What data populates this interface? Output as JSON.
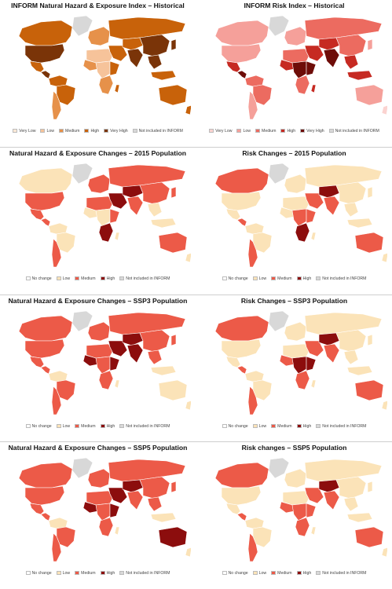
{
  "panels": [
    {
      "id": "p0",
      "title": "INFORM Natural Hazard & Exposure Index – Historical",
      "legend": [
        {
          "label": "Very Low",
          "color": "#fde9d6"
        },
        {
          "label": "Low",
          "color": "#f6c39a"
        },
        {
          "label": "Medium",
          "color": "#e6914a"
        },
        {
          "label": "High",
          "color": "#c8620a"
        },
        {
          "label": "Very High",
          "color": "#7a3408"
        },
        {
          "label": "Not included in INFORM",
          "color": "#d8d8d8"
        }
      ],
      "regions": {
        "greenland": "#d8d8d8",
        "canada": "#c8620a",
        "usa": "#7a3408",
        "mexico": "#c8620a",
        "central_america": "#7a3408",
        "south_america_north": "#c8620a",
        "brazil": "#c8620a",
        "south_america_south": "#e6914a",
        "europe": "#e6914a",
        "north_africa": "#f6c39a",
        "west_africa": "#e6914a",
        "central_africa": "#f6c39a",
        "east_africa": "#c8620a",
        "southern_africa": "#e6914a",
        "madagascar": "#c8620a",
        "middle_east": "#c8620a",
        "russia": "#c8620a",
        "central_asia": "#c8620a",
        "south_asia": "#7a3408",
        "china": "#7a3408",
        "southeast_asia": "#7a3408",
        "japan": "#7a3408",
        "indonesia": "#c8620a",
        "australia": "#c8620a",
        "new_zealand": "#c8620a",
        "antarctica": "#ffffff"
      }
    },
    {
      "id": "p1",
      "title": "INFORM Risk Index – Historical",
      "legend": [
        {
          "label": "Very Low",
          "color": "#fbd3d0"
        },
        {
          "label": "Low",
          "color": "#f5a09a"
        },
        {
          "label": "Medium",
          "color": "#ec6b60"
        },
        {
          "label": "High",
          "color": "#c62a22"
        },
        {
          "label": "Very High",
          "color": "#6e0c08"
        },
        {
          "label": "Not included in INFORM",
          "color": "#d8d8d8"
        }
      ],
      "regions": {
        "greenland": "#d8d8d8",
        "canada": "#f5a09a",
        "usa": "#f5a09a",
        "mexico": "#c62a22",
        "central_america": "#6e0c08",
        "south_america_north": "#ec6b60",
        "brazil": "#ec6b60",
        "south_america_south": "#f5a09a",
        "europe": "#f5a09a",
        "north_africa": "#ec6b60",
        "west_africa": "#c62a22",
        "central_africa": "#6e0c08",
        "east_africa": "#6e0c08",
        "southern_africa": "#ec6b60",
        "madagascar": "#c62a22",
        "middle_east": "#c62a22",
        "russia": "#ec6b60",
        "central_asia": "#c62a22",
        "south_asia": "#6e0c08",
        "china": "#ec6b60",
        "southeast_asia": "#c62a22",
        "japan": "#f5a09a",
        "indonesia": "#c62a22",
        "australia": "#f5a09a",
        "new_zealand": "#fbd3d0",
        "antarctica": "#ffffff"
      }
    },
    {
      "id": "p2",
      "title": "Natural Hazard & Exposure Changes – 2015 Population",
      "legend": [
        {
          "label": "No change",
          "color": "#ffffff"
        },
        {
          "label": "Low",
          "color": "#fbe3b8"
        },
        {
          "label": "Medium",
          "color": "#ec5a48"
        },
        {
          "label": "High",
          "color": "#8c0d0d"
        },
        {
          "label": "Not included in INFORM",
          "color": "#d8d8d8"
        }
      ],
      "regions": {
        "greenland": "#d8d8d8",
        "canada": "#fbe3b8",
        "usa": "#ec5a48",
        "mexico": "#ec5a48",
        "central_america": "#ec5a48",
        "south_america_north": "#fbe3b8",
        "brazil": "#fbe3b8",
        "south_america_south": "#ec5a48",
        "europe": "#ec5a48",
        "north_africa": "#ec5a48",
        "west_africa": "#fbe3b8",
        "central_africa": "#fbe3b8",
        "east_africa": "#ec5a48",
        "southern_africa": "#8c0d0d",
        "madagascar": "#fbe3b8",
        "middle_east": "#8c0d0d",
        "russia": "#ec5a48",
        "central_asia": "#8c0d0d",
        "south_asia": "#ec5a48",
        "china": "#ec5a48",
        "southeast_asia": "#fbe3b8",
        "japan": "#ec5a48",
        "indonesia": "#fbe3b8",
        "australia": "#ec5a48",
        "new_zealand": "#fbe3b8",
        "antarctica": "#ffffff"
      }
    },
    {
      "id": "p3",
      "title": "Risk Changes – 2015 Population",
      "legend": [
        {
          "label": "No change",
          "color": "#ffffff"
        },
        {
          "label": "Low",
          "color": "#fbe3b8"
        },
        {
          "label": "Medium",
          "color": "#ec5a48"
        },
        {
          "label": "High",
          "color": "#8c0d0d"
        },
        {
          "label": "Not included in INFORM",
          "color": "#d8d8d8"
        }
      ],
      "regions": {
        "greenland": "#d8d8d8",
        "canada": "#ec5a48",
        "usa": "#fbe3b8",
        "mexico": "#fbe3b8",
        "central_america": "#ec5a48",
        "south_america_north": "#fbe3b8",
        "brazil": "#fbe3b8",
        "south_america_south": "#ec5a48",
        "europe": "#fbe3b8",
        "north_africa": "#fbe3b8",
        "west_africa": "#fbe3b8",
        "central_africa": "#ec5a48",
        "east_africa": "#ec5a48",
        "southern_africa": "#8c0d0d",
        "madagascar": "#fbe3b8",
        "middle_east": "#ec5a48",
        "russia": "#fbe3b8",
        "central_asia": "#8c0d0d",
        "south_asia": "#ec5a48",
        "china": "#fbe3b8",
        "southeast_asia": "#fbe3b8",
        "japan": "#fbe3b8",
        "indonesia": "#fbe3b8",
        "australia": "#ec5a48",
        "new_zealand": "#fbe3b8",
        "antarctica": "#ffffff"
      }
    },
    {
      "id": "p4",
      "title": "Natural Hazard & Exposure Changes – SSP3 Population",
      "legend": [
        {
          "label": "No change",
          "color": "#ffffff"
        },
        {
          "label": "Low",
          "color": "#fbe3b8"
        },
        {
          "label": "Medium",
          "color": "#ec5a48"
        },
        {
          "label": "High",
          "color": "#8c0d0d"
        },
        {
          "label": "Not included in INFORM",
          "color": "#d8d8d8"
        }
      ],
      "regions": {
        "greenland": "#d8d8d8",
        "canada": "#ec5a48",
        "usa": "#ec5a48",
        "mexico": "#ec5a48",
        "central_america": "#ec5a48",
        "south_america_north": "#fbe3b8",
        "brazil": "#ec5a48",
        "south_america_south": "#ec5a48",
        "europe": "#ec5a48",
        "north_africa": "#ec5a48",
        "west_africa": "#8c0d0d",
        "central_africa": "#ec5a48",
        "east_africa": "#8c0d0d",
        "southern_africa": "#ec5a48",
        "madagascar": "#fbe3b8",
        "middle_east": "#8c0d0d",
        "russia": "#ec5a48",
        "central_asia": "#8c0d0d",
        "south_asia": "#8c0d0d",
        "china": "#ec5a48",
        "southeast_asia": "#ec5a48",
        "japan": "#ec5a48",
        "indonesia": "#fbe3b8",
        "australia": "#fbe3b8",
        "new_zealand": "#fbe3b8",
        "antarctica": "#ffffff"
      }
    },
    {
      "id": "p5",
      "title": "Risk Changes – SSP3 Population",
      "legend": [
        {
          "label": "No change",
          "color": "#ffffff"
        },
        {
          "label": "Low",
          "color": "#fbe3b8"
        },
        {
          "label": "Medium",
          "color": "#ec5a48"
        },
        {
          "label": "High",
          "color": "#8c0d0d"
        },
        {
          "label": "Not included in INFORM",
          "color": "#d8d8d8"
        }
      ],
      "regions": {
        "greenland": "#d8d8d8",
        "canada": "#ec5a48",
        "usa": "#fbe3b8",
        "mexico": "#fbe3b8",
        "central_america": "#ec5a48",
        "south_america_north": "#fbe3b8",
        "brazil": "#fbe3b8",
        "south_america_south": "#ec5a48",
        "europe": "#fbe3b8",
        "north_africa": "#fbe3b8",
        "west_africa": "#ec5a48",
        "central_africa": "#8c0d0d",
        "east_africa": "#8c0d0d",
        "southern_africa": "#ec5a48",
        "madagascar": "#fbe3b8",
        "middle_east": "#ec5a48",
        "russia": "#fbe3b8",
        "central_asia": "#8c0d0d",
        "south_asia": "#ec5a48",
        "china": "#fbe3b8",
        "southeast_asia": "#fbe3b8",
        "japan": "#fbe3b8",
        "indonesia": "#fbe3b8",
        "australia": "#ec5a48",
        "new_zealand": "#fbe3b8",
        "antarctica": "#ffffff"
      }
    },
    {
      "id": "p6",
      "title": "Natural Hazard & Exposure Changes – SSP5 Population",
      "legend": [
        {
          "label": "No change",
          "color": "#ffffff"
        },
        {
          "label": "Low",
          "color": "#fbe3b8"
        },
        {
          "label": "Medium",
          "color": "#ec5a48"
        },
        {
          "label": "High",
          "color": "#8c0d0d"
        },
        {
          "label": "Not included in INFORM",
          "color": "#d8d8d8"
        }
      ],
      "regions": {
        "greenland": "#d8d8d8",
        "canada": "#ec5a48",
        "usa": "#ec5a48",
        "mexico": "#ec5a48",
        "central_america": "#ec5a48",
        "south_america_north": "#fbe3b8",
        "brazil": "#ec5a48",
        "south_america_south": "#ec5a48",
        "europe": "#ec5a48",
        "north_africa": "#ec5a48",
        "west_africa": "#8c0d0d",
        "central_africa": "#ec5a48",
        "east_africa": "#8c0d0d",
        "southern_africa": "#ec5a48",
        "madagascar": "#fbe3b8",
        "middle_east": "#8c0d0d",
        "russia": "#ec5a48",
        "central_asia": "#8c0d0d",
        "south_asia": "#ec5a48",
        "china": "#ec5a48",
        "southeast_asia": "#ec5a48",
        "japan": "#ec5a48",
        "indonesia": "#fbe3b8",
        "australia": "#8c0d0d",
        "new_zealand": "#fbe3b8",
        "antarctica": "#ffffff"
      }
    },
    {
      "id": "p7",
      "title": "Risk changes – SSP5 Population",
      "legend": [
        {
          "label": "No change",
          "color": "#ffffff"
        },
        {
          "label": "Low",
          "color": "#fbe3b8"
        },
        {
          "label": "Medium",
          "color": "#ec5a48"
        },
        {
          "label": "High",
          "color": "#8c0d0d"
        },
        {
          "label": "Not included in INFORM",
          "color": "#d8d8d8"
        }
      ],
      "regions": {
        "greenland": "#d8d8d8",
        "canada": "#ec5a48",
        "usa": "#fbe3b8",
        "mexico": "#fbe3b8",
        "central_america": "#ec5a48",
        "south_america_north": "#fbe3b8",
        "brazil": "#fbe3b8",
        "south_america_south": "#ec5a48",
        "europe": "#fbe3b8",
        "north_africa": "#fbe3b8",
        "west_africa": "#ec5a48",
        "central_africa": "#ec5a48",
        "east_africa": "#ec5a48",
        "southern_africa": "#ec5a48",
        "madagascar": "#fbe3b8",
        "middle_east": "#ec5a48",
        "russia": "#fbe3b8",
        "central_asia": "#8c0d0d",
        "south_asia": "#ec5a48",
        "china": "#fbe3b8",
        "southeast_asia": "#fbe3b8",
        "japan": "#fbe3b8",
        "indonesia": "#fbe3b8",
        "australia": "#ec5a48",
        "new_zealand": "#fbe3b8",
        "antarctica": "#ffffff"
      }
    }
  ]
}
